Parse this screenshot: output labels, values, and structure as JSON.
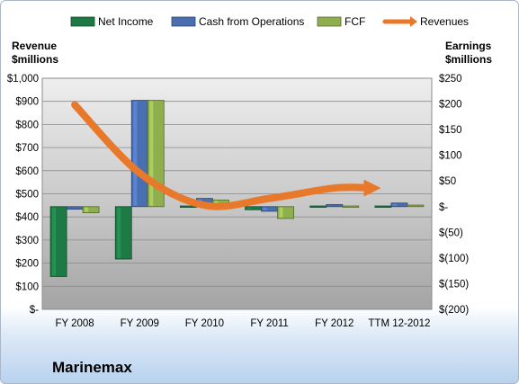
{
  "chart_data": {
    "type": "bar",
    "company": "Marinemax",
    "categories": [
      "FY 2008",
      "FY 2009",
      "FY 2010",
      "FY 2011",
      "FY 2012",
      "TTM 12-2012"
    ],
    "series": [
      {
        "name": "Net Income",
        "axis": "right",
        "kind": "bar",
        "color": "#1e7a45",
        "values": [
          -136,
          -102,
          1,
          -6,
          0,
          0
        ]
      },
      {
        "name": "Cash from Operations",
        "axis": "right",
        "kind": "bar",
        "color": "#4a6fb0",
        "values": [
          -5,
          207,
          16,
          -9,
          4,
          7
        ]
      },
      {
        "name": "FCF",
        "axis": "right",
        "kind": "bar",
        "color": "#8fae4e",
        "values": [
          -12,
          207,
          13,
          -23,
          1,
          3
        ]
      },
      {
        "name": "Revenues",
        "axis": "left",
        "kind": "line",
        "color": "#e8782a",
        "values": [
          885,
          590,
          450,
          480,
          525,
          525
        ]
      }
    ],
    "left_axis": {
      "title_line1": "Revenue",
      "title_line2": "$millions",
      "min": 0,
      "max": 1000,
      "step": 100,
      "ticks": [
        "$-",
        "$100",
        "$200",
        "$300",
        "$400",
        "$500",
        "$600",
        "$700",
        "$800",
        "$900",
        "$1,000"
      ]
    },
    "right_axis": {
      "title_line1": "Earnings",
      "title_line2": "$millions",
      "min": -200,
      "max": 250,
      "step": 50,
      "ticks": [
        "$(200)",
        "$(150)",
        "$(100)",
        "$(50)",
        "$-",
        "$50",
        "$100",
        "$150",
        "$200",
        "$250"
      ]
    },
    "legend_position": "top",
    "grid": true
  }
}
